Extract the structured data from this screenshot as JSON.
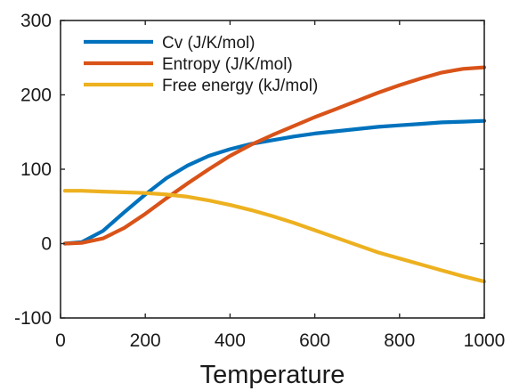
{
  "chart_data": {
    "type": "line",
    "title": "",
    "xlabel": "Temperature",
    "ylabel": "",
    "xlim": [
      0,
      1000
    ],
    "ylim": [
      -100,
      300
    ],
    "xticks": [
      "0",
      "200",
      "400",
      "600",
      "800",
      "1000"
    ],
    "yticks": [
      "-100",
      "0",
      "100",
      "200",
      "300"
    ],
    "grid": false,
    "legend_position": "top-left",
    "x": [
      10,
      50,
      100,
      150,
      200,
      250,
      300,
      350,
      400,
      450,
      500,
      550,
      600,
      650,
      700,
      750,
      800,
      850,
      900,
      950,
      1000
    ],
    "series": [
      {
        "name": "Cv (J/K/mol)",
        "color": "#0072BD",
        "values": [
          0,
          2,
          17,
          42,
          66,
          88,
          105,
          118,
          127,
          134,
          139,
          144,
          148,
          151,
          154,
          157,
          159,
          161,
          163,
          164,
          165
        ]
      },
      {
        "name": "Entropy (J/K/mol)",
        "color": "#D95319",
        "values": [
          0,
          1,
          7,
          21,
          40,
          61,
          81,
          100,
          118,
          133,
          146,
          158,
          170,
          181,
          192,
          203,
          213,
          222,
          230,
          235,
          237
        ]
      },
      {
        "name": "Free energy (kJ/mol)",
        "color": "#EDB120",
        "values": [
          71,
          71,
          70,
          69,
          68,
          66,
          63,
          58,
          52,
          45,
          37,
          28,
          18,
          8,
          -2,
          -12,
          -20,
          -28,
          -36,
          -44,
          -51
        ]
      }
    ]
  }
}
